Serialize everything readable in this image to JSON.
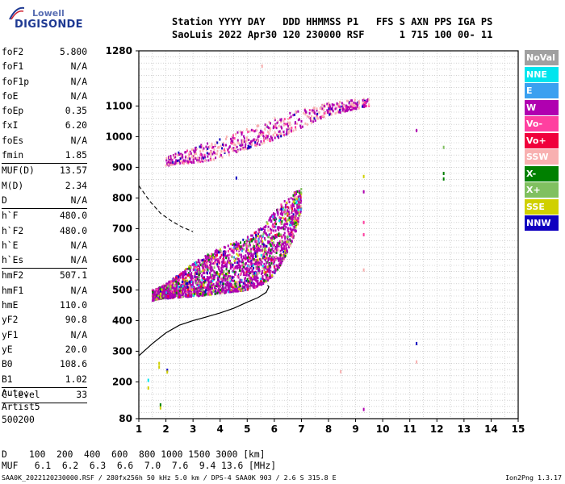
{
  "logo": {
    "line1": "Lowell",
    "line2": "DIGISONDE"
  },
  "header": {
    "labels": "Station YYYY DAY   DDD HHMMSS P1   FFS S AXN PPS IGA PS",
    "values": "SaoLuis 2022 Apr30 120 230000 RSF      1 715 100 00- 11"
  },
  "params": [
    {
      "label": "foF2",
      "value": "5.800"
    },
    {
      "label": "foF1",
      "value": "N/A"
    },
    {
      "label": "foF1p",
      "value": "N/A"
    },
    {
      "label": "foE",
      "value": "N/A"
    },
    {
      "label": "foEp",
      "value": "0.35"
    },
    {
      "label": "fxI",
      "value": "6.20"
    },
    {
      "label": "foEs",
      "value": "N/A"
    },
    {
      "label": "fmin",
      "value": "1.85"
    },
    {
      "sep": true
    },
    {
      "label": "MUF(D)",
      "value": "13.57"
    },
    {
      "label": "M(D)",
      "value": "2.34"
    },
    {
      "label": "D",
      "value": "N/A"
    },
    {
      "sep": true
    },
    {
      "label": "h`F",
      "value": "480.0"
    },
    {
      "label": "h`F2",
      "value": "480.0"
    },
    {
      "label": "h`E",
      "value": "N/A"
    },
    {
      "label": "h`Es",
      "value": "N/A"
    },
    {
      "sep": true
    },
    {
      "label": "hmF2",
      "value": "507.1"
    },
    {
      "label": "hmF1",
      "value": "N/A"
    },
    {
      "label": "hmE",
      "value": "110.0"
    },
    {
      "label": "yF2",
      "value": "90.8"
    },
    {
      "label": "yF1",
      "value": "N/A"
    },
    {
      "label": "yE",
      "value": "20.0"
    },
    {
      "label": "B0",
      "value": "108.6"
    },
    {
      "label": "B1",
      "value": "1.02"
    },
    {
      "sep": true
    },
    {
      "label": "C-level",
      "value": "33"
    },
    {
      "sep": true
    }
  ],
  "auto": {
    "line1": "Auto:",
    "line2": "Artist5",
    "line3": "500200"
  },
  "legend": [
    {
      "label": "NoVal",
      "color": "#a0a0a0"
    },
    {
      "label": "NNE",
      "color": "#00e5ee"
    },
    {
      "label": "E",
      "color": "#3aa0f0"
    },
    {
      "label": "W",
      "color": "#b000b0"
    },
    {
      "label": "Vo-",
      "color": "#ff40a0"
    },
    {
      "label": "Vo+",
      "color": "#f0003c"
    },
    {
      "label": "SSW",
      "color": "#f8b0b0"
    },
    {
      "label": "X-",
      "color": "#008000"
    },
    {
      "label": "X+",
      "color": "#80c060"
    },
    {
      "label": "SSE",
      "color": "#d0d000"
    },
    {
      "label": "NNW",
      "color": "#1000c0"
    }
  ],
  "muf_table": {
    "d_row": "D    100  200  400  600  800 1000 1500 3000 [km]",
    "muf_row": "MUF   6.1  6.2  6.3  6.6  7.0  7.6  9.4 13.6 [MHz]"
  },
  "footer": {
    "file": "SAA0K_2022120230000.RSF / 280fx256h 50 kHz 5.0 km / DPS-4 SAA0K 903 / 2.6 S 315.8 E",
    "version": "Ion2Png 1.3.17"
  },
  "chart_data": {
    "type": "scatter",
    "xlim": [
      1,
      15
    ],
    "ylim": [
      80,
      1280
    ],
    "x_ticks": [
      1,
      2,
      3,
      4,
      5,
      6,
      7,
      8,
      9,
      10,
      11,
      12,
      13,
      14,
      15
    ],
    "y_ticks": [
      80,
      200,
      300,
      400,
      500,
      600,
      700,
      800,
      900,
      1000,
      1100,
      1280
    ],
    "x_minor_step": 0.5,
    "y_minor_step": 20,
    "grid": true,
    "profile_curve": [
      [
        1.0,
        285
      ],
      [
        1.5,
        325
      ],
      [
        2.0,
        360
      ],
      [
        2.5,
        385
      ],
      [
        3.0,
        400
      ],
      [
        3.5,
        412
      ],
      [
        4.0,
        425
      ],
      [
        4.5,
        440
      ],
      [
        5.0,
        460
      ],
      [
        5.4,
        475
      ],
      [
        5.7,
        492
      ],
      [
        5.8,
        510
      ],
      [
        5.75,
        515
      ]
    ],
    "dashed_extrapolation": [
      [
        1.0,
        840
      ],
      [
        1.4,
        790
      ],
      [
        1.8,
        750
      ],
      [
        2.2,
        725
      ],
      [
        2.6,
        705
      ],
      [
        3.0,
        690
      ]
    ],
    "traces": {
      "F1_hop": {
        "series": [
          "W",
          "Vo-",
          "Vo+",
          "X-",
          "X+",
          "SSE",
          "NNW",
          "SSW",
          "NNE",
          "E"
        ],
        "x": [
          1.5,
          1.7,
          2.0,
          2.3,
          2.6,
          2.9,
          3.2,
          3.5,
          3.8,
          4.1,
          4.4,
          4.7,
          5.0,
          5.3,
          5.6,
          5.9,
          6.2,
          6.5,
          6.8,
          7.0
        ],
        "y_low": [
          465,
          470,
          472,
          474,
          476,
          478,
          480,
          483,
          486,
          489,
          492,
          496,
          500,
          508,
          520,
          540,
          575,
          625,
          690,
          760
        ],
        "y_high": [
          500,
          505,
          520,
          540,
          560,
          580,
          600,
          615,
          628,
          640,
          650,
          660,
          672,
          690,
          712,
          742,
          775,
          800,
          825,
          835
        ]
      },
      "F2_hop": {
        "series": [
          "W",
          "SSW",
          "Vo-",
          "NNW"
        ],
        "x": [
          2.0,
          2.5,
          3.0,
          3.5,
          4.0,
          4.5,
          5.0,
          5.5,
          6.0,
          6.5,
          7.0,
          7.5,
          8.0,
          8.5,
          9.0,
          9.5
        ],
        "y_low": [
          905,
          910,
          915,
          920,
          930,
          945,
          960,
          975,
          990,
          1010,
          1030,
          1050,
          1070,
          1080,
          1090,
          1100
        ],
        "y_high": [
          930,
          950,
          965,
          980,
          995,
          1010,
          1025,
          1040,
          1060,
          1075,
          1090,
          1100,
          1110,
          1115,
          1120,
          1125
        ]
      }
    },
    "isolated_points": [
      {
        "x": 1.75,
        "y": 260,
        "series": "SSE"
      },
      {
        "x": 1.75,
        "y": 248,
        "series": "SSE"
      },
      {
        "x": 2.05,
        "y": 238,
        "series": "NNW"
      },
      {
        "x": 2.05,
        "y": 232,
        "series": "SSE"
      },
      {
        "x": 1.35,
        "y": 205,
        "series": "NNE"
      },
      {
        "x": 1.35,
        "y": 180,
        "series": "SSE"
      },
      {
        "x": 1.8,
        "y": 125,
        "series": "X-"
      },
      {
        "x": 1.8,
        "y": 115,
        "series": "SSE"
      },
      {
        "x": 9.3,
        "y": 870,
        "series": "SSE"
      },
      {
        "x": 9.3,
        "y": 820,
        "series": "W"
      },
      {
        "x": 9.3,
        "y": 720,
        "series": "Vo-"
      },
      {
        "x": 9.3,
        "y": 680,
        "series": "Vo-"
      },
      {
        "x": 9.3,
        "y": 565,
        "series": "SSW"
      },
      {
        "x": 9.3,
        "y": 110,
        "series": "W"
      },
      {
        "x": 11.25,
        "y": 1020,
        "series": "W"
      },
      {
        "x": 11.25,
        "y": 325,
        "series": "NNW"
      },
      {
        "x": 11.25,
        "y": 265,
        "series": "SSW"
      },
      {
        "x": 12.25,
        "y": 965,
        "series": "X+"
      },
      {
        "x": 12.25,
        "y": 880,
        "series": "X-"
      },
      {
        "x": 12.25,
        "y": 862,
        "series": "X-"
      },
      {
        "x": 8.45,
        "y": 233,
        "series": "SSW"
      },
      {
        "x": 5.55,
        "y": 1230,
        "series": "SSW"
      },
      {
        "x": 4.6,
        "y": 865,
        "series": "NNW"
      }
    ]
  }
}
